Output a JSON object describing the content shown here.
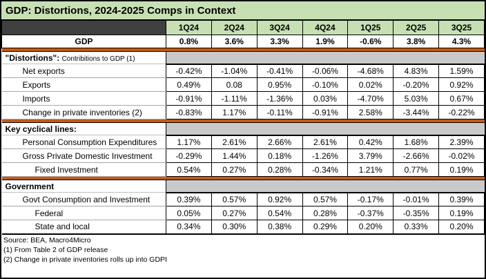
{
  "title": "GDP: Distortions, 2024-2025 Comps in Context",
  "columns": [
    "1Q24",
    "2Q24",
    "3Q24",
    "4Q24",
    "1Q25",
    "2Q25",
    "3Q25"
  ],
  "gdp": {
    "label": "GDP",
    "values": [
      "0.8%",
      "3.6%",
      "3.3%",
      "1.9%",
      "-0.6%",
      "3.8%",
      "4.3%"
    ]
  },
  "sections": [
    {
      "heading": "\"Distortions\":",
      "note": "Contribitions to GDP (1)",
      "rows": [
        {
          "label": "Net exports",
          "values": [
            "-0.42%",
            "-1.04%",
            "-0.41%",
            "-0.06%",
            "-4.68%",
            "4.83%",
            "1.59%"
          ]
        },
        {
          "label": "Exports",
          "values": [
            "0.49%",
            "0.08",
            "0.95%",
            "-0.10%",
            "0.02%",
            "-0.20%",
            "0.92%"
          ]
        },
        {
          "label": "Imports",
          "values": [
            "-0.91%",
            "-1.11%",
            "-1.36%",
            "0.03%",
            "-4.70%",
            "5.03%",
            "0.67%"
          ]
        },
        {
          "label": "Change in private inventories (2)",
          "values": [
            "-0.83%",
            "1.17%",
            "-0.11%",
            "-0.91%",
            "2.58%",
            "-3.44%",
            "-0.22%"
          ]
        }
      ]
    },
    {
      "heading": "Key cyclical lines:",
      "note": "",
      "rows": [
        {
          "label": "Personal Consumption Expenditures",
          "values": [
            "1.17%",
            "2.61%",
            "2.66%",
            "2.61%",
            "0.42%",
            "1.68%",
            "2.39%"
          ]
        },
        {
          "label": "Gross Private Domestic Investment",
          "values": [
            "-0.29%",
            "1.44%",
            "0.18%",
            "-1.26%",
            "3.79%",
            "-2.66%",
            "-0.02%"
          ]
        },
        {
          "label": "Fixed Investment",
          "values": [
            "0.54%",
            "0.27%",
            "0.28%",
            "-0.34%",
            "1.21%",
            "0.77%",
            "0.19%"
          ]
        }
      ]
    },
    {
      "heading": "Government",
      "note": "",
      "rows": [
        {
          "label": "Govt Consumption and Investment",
          "values": [
            "0.39%",
            "0.57%",
            "0.92%",
            "0.57%",
            "-0.17%",
            "-0.01%",
            "0.39%"
          ]
        },
        {
          "label": "Federal",
          "values": [
            "0.05%",
            "0.27%",
            "0.54%",
            "0.28%",
            "-0.37%",
            "-0.35%",
            "0.19%"
          ]
        },
        {
          "label": "State and local",
          "values": [
            "0.34%",
            "0.30%",
            "0.38%",
            "0.29%",
            "0.20%",
            "0.33%",
            "0.20%"
          ]
        }
      ]
    }
  ],
  "footnotes": [
    "Source: BEA, Macro4Micro",
    "(1) From Table 2 of GDP release",
    "(2) Change in private inventories rolls up into GDPI"
  ],
  "colors": {
    "title_green": "#c6e0b4",
    "header_green": "#c6e0b4",
    "corner_dark": "#404040",
    "divider_orange": "#c55a11",
    "section_gray": "#c9c9c9",
    "border_black": "#000000"
  },
  "chart_data": {
    "type": "table",
    "title": "GDP: Distortions, 2024-2025 Comps in Context",
    "categories": [
      "1Q24",
      "2Q24",
      "3Q24",
      "4Q24",
      "1Q25",
      "2Q25",
      "3Q25"
    ],
    "series": [
      {
        "name": "GDP",
        "values": [
          0.8,
          3.6,
          3.3,
          1.9,
          -0.6,
          3.8,
          4.3
        ]
      },
      {
        "name": "Net exports",
        "values": [
          -0.42,
          -1.04,
          -0.41,
          -0.06,
          -4.68,
          4.83,
          1.59
        ]
      },
      {
        "name": "Exports",
        "values": [
          0.49,
          0.08,
          0.95,
          -0.1,
          0.02,
          -0.2,
          0.92
        ]
      },
      {
        "name": "Imports",
        "values": [
          -0.91,
          -1.11,
          -1.36,
          0.03,
          -4.7,
          5.03,
          0.67
        ]
      },
      {
        "name": "Change in private inventories",
        "values": [
          -0.83,
          1.17,
          -0.11,
          -0.91,
          2.58,
          -3.44,
          -0.22
        ]
      },
      {
        "name": "Personal Consumption Expenditures",
        "values": [
          1.17,
          2.61,
          2.66,
          2.61,
          0.42,
          1.68,
          2.39
        ]
      },
      {
        "name": "Gross Private Domestic Investment",
        "values": [
          -0.29,
          1.44,
          0.18,
          -1.26,
          3.79,
          -2.66,
          -0.02
        ]
      },
      {
        "name": "Fixed Investment",
        "values": [
          0.54,
          0.27,
          0.28,
          -0.34,
          1.21,
          0.77,
          0.19
        ]
      },
      {
        "name": "Govt Consumption and Investment",
        "values": [
          0.39,
          0.57,
          0.92,
          0.57,
          -0.17,
          -0.01,
          0.39
        ]
      },
      {
        "name": "Federal",
        "values": [
          0.05,
          0.27,
          0.54,
          0.28,
          -0.37,
          -0.35,
          0.19
        ]
      },
      {
        "name": "State and local",
        "values": [
          0.34,
          0.3,
          0.38,
          0.29,
          0.2,
          0.33,
          0.2
        ]
      }
    ]
  }
}
